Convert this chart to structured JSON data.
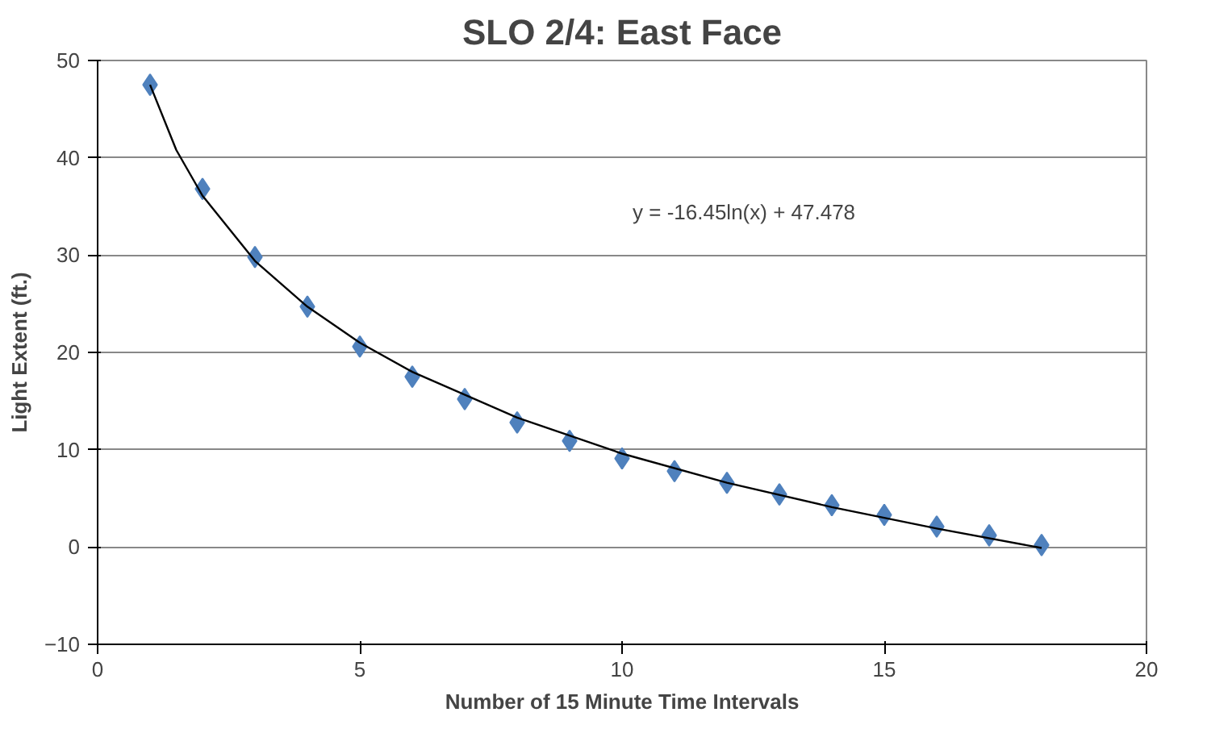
{
  "chart_data": {
    "type": "scatter",
    "title": "SLO 2/4: East Face",
    "xlabel": "Number of 15 Minute Time Intervals",
    "ylabel": "Light Extent (ft.)",
    "xlim": [
      0,
      20
    ],
    "xticks": [
      0,
      5,
      10,
      15,
      20
    ],
    "ylim": [
      -10,
      50
    ],
    "yticks": [
      -10,
      0,
      10,
      20,
      30,
      40,
      50
    ],
    "grid": "y",
    "marker": "diamond",
    "annotations": [
      "y = -16.45ln(x) + 47.478"
    ],
    "series": [
      {
        "color": "#4f81bd",
        "x": [
          1,
          2,
          3,
          4,
          5,
          6,
          7,
          8,
          9,
          10,
          11,
          12,
          13,
          14,
          15,
          16,
          17,
          18
        ],
        "values": [
          47.5,
          36.8,
          29.8,
          24.7,
          20.6,
          17.5,
          15.2,
          12.8,
          10.9,
          9.1,
          7.8,
          6.6,
          5.4,
          4.3,
          3.3,
          2.1,
          1.2,
          0.2
        ]
      },
      {
        "type": "line",
        "color": "#000000",
        "marker": "none",
        "x": [
          1,
          1.5,
          2,
          3,
          4,
          5,
          6,
          8,
          10,
          12,
          14,
          16,
          18
        ],
        "values": [
          47.5,
          40.8,
          36.1,
          29.4,
          24.7,
          21.0,
          18.0,
          13.3,
          9.6,
          6.6,
          4.1,
          1.9,
          -0.1
        ]
      }
    ]
  }
}
